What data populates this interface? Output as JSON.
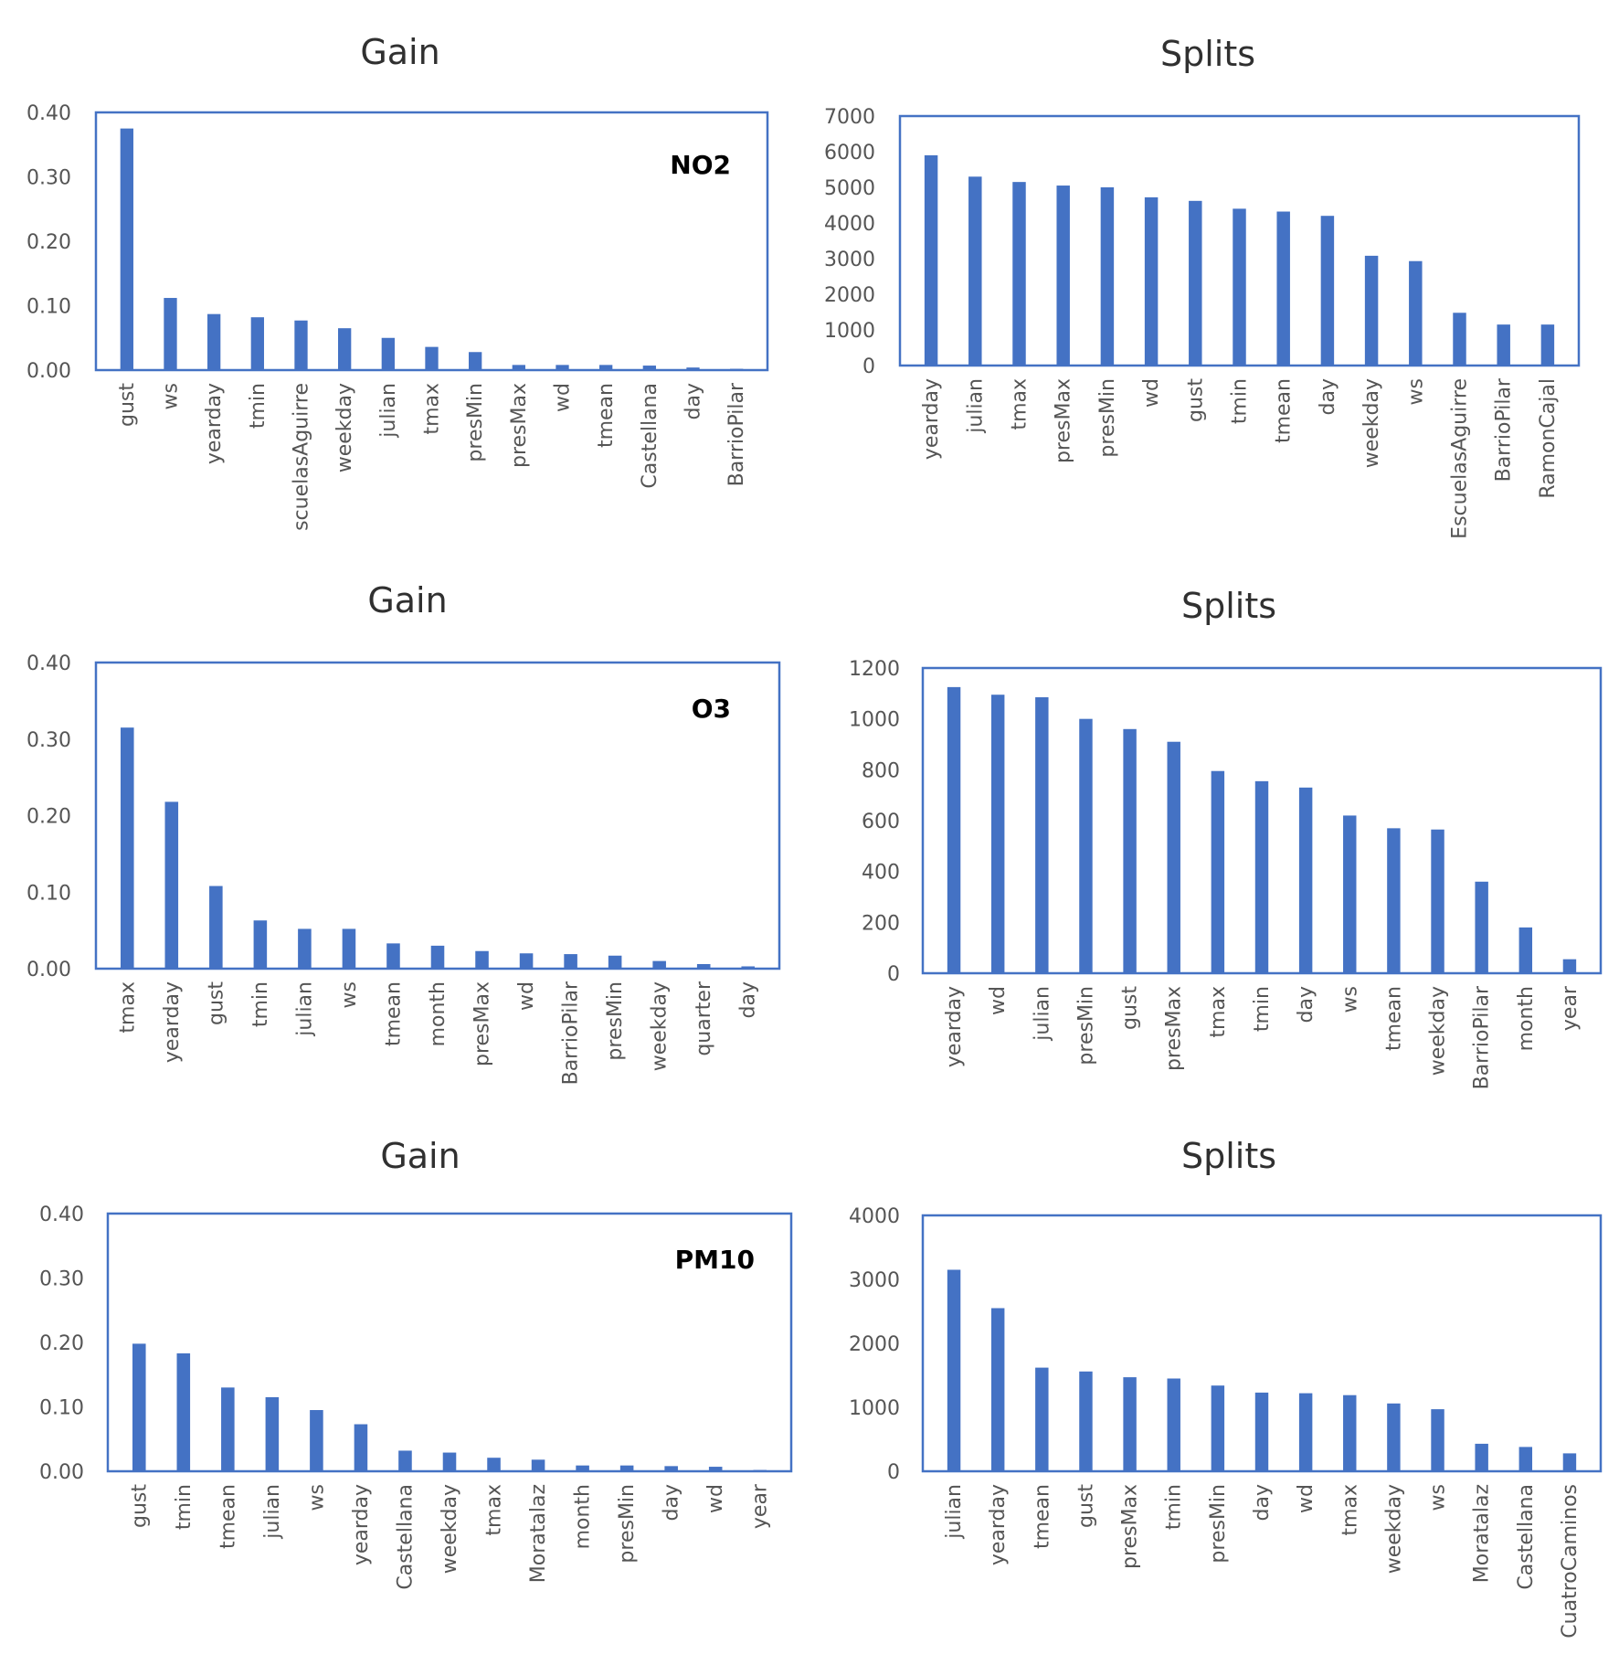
{
  "colors": {
    "bar": "#4472c4",
    "frame": "#4472c4"
  },
  "chart_data": [
    {
      "type": "bar",
      "title": "Gain",
      "pollutant": "NO2",
      "ylim": [
        0,
        0.4
      ],
      "yticks": [
        "0.00",
        "0.10",
        "0.20",
        "0.30",
        "0.40"
      ],
      "categories": [
        "gust",
        "ws",
        "yearday",
        "tmin",
        "scuelasAguirre",
        "weekday",
        "julian",
        "tmax",
        "presMin",
        "presMax",
        "wd",
        "tmean",
        "Castellana",
        "day",
        "BarrioPilar"
      ],
      "values": [
        0.375,
        0.112,
        0.087,
        0.082,
        0.077,
        0.065,
        0.05,
        0.036,
        0.028,
        0.008,
        0.008,
        0.008,
        0.007,
        0.004,
        0.002
      ]
    },
    {
      "type": "bar",
      "title": "Splits",
      "ylim": [
        0,
        7000
      ],
      "yticks": [
        "0",
        "1000",
        "2000",
        "3000",
        "4000",
        "5000",
        "6000",
        "7000"
      ],
      "categories": [
        "yearday",
        "julian",
        "tmax",
        "presMax",
        "presMin",
        "wd",
        "gust",
        "tmin",
        "tmean",
        "day",
        "weekday",
        "ws",
        "EscuelasAguirre",
        "BarrioPilar",
        "RamonCajal"
      ],
      "values": [
        5900,
        5300,
        5150,
        5050,
        5000,
        4720,
        4620,
        4400,
        4320,
        4200,
        3080,
        2930,
        1480,
        1150,
        1150
      ]
    },
    {
      "type": "bar",
      "title": "Gain",
      "pollutant": "O3",
      "ylim": [
        0,
        0.4
      ],
      "yticks": [
        "0.00",
        "0.10",
        "0.20",
        "0.30",
        "0.40"
      ],
      "categories": [
        "tmax",
        "yearday",
        "gust",
        "tmin",
        "julian",
        "ws",
        "tmean",
        "month",
        "presMax",
        "wd",
        "BarrioPilar",
        "presMin",
        "weekday",
        "quarter",
        "day"
      ],
      "values": [
        0.315,
        0.218,
        0.108,
        0.063,
        0.052,
        0.052,
        0.033,
        0.03,
        0.023,
        0.02,
        0.019,
        0.017,
        0.01,
        0.006,
        0.003
      ]
    },
    {
      "type": "bar",
      "title": "Splits",
      "ylim": [
        0,
        1200
      ],
      "yticks": [
        "0",
        "200",
        "400",
        "600",
        "800",
        "1000",
        "1200"
      ],
      "categories": [
        "yearday",
        "wd",
        "julian",
        "presMin",
        "gust",
        "presMax",
        "tmax",
        "tmin",
        "day",
        "ws",
        "tmean",
        "weekday",
        "BarrioPilar",
        "month",
        "year"
      ],
      "values": [
        1125,
        1095,
        1085,
        1000,
        960,
        910,
        795,
        755,
        730,
        620,
        570,
        565,
        360,
        180,
        55
      ]
    },
    {
      "type": "bar",
      "title": "Gain",
      "pollutant": "PM10",
      "ylim": [
        0,
        0.4
      ],
      "yticks": [
        "0.00",
        "0.10",
        "0.20",
        "0.30",
        "0.40"
      ],
      "categories": [
        "gust",
        "tmin",
        "tmean",
        "julian",
        "ws",
        "yearday",
        "Castellana",
        "weekday",
        "tmax",
        "Moratalaz",
        "month",
        "presMin",
        "day",
        "wd",
        "year"
      ],
      "values": [
        0.198,
        0.183,
        0.13,
        0.115,
        0.095,
        0.073,
        0.032,
        0.029,
        0.021,
        0.018,
        0.009,
        0.009,
        0.008,
        0.007,
        0.002
      ]
    },
    {
      "type": "bar",
      "title": "Splits",
      "ylim": [
        0,
        4000
      ],
      "yticks": [
        "0",
        "1000",
        "2000",
        "3000",
        "4000"
      ],
      "categories": [
        "julian",
        "yearday",
        "tmean",
        "gust",
        "presMax",
        "tmin",
        "presMin",
        "day",
        "wd",
        "tmax",
        "weekday",
        "ws",
        "Moratalaz",
        "Castellana",
        "CuatroCaminos"
      ],
      "values": [
        3150,
        2550,
        1620,
        1560,
        1470,
        1450,
        1340,
        1230,
        1220,
        1190,
        1060,
        970,
        430,
        380,
        280
      ]
    }
  ]
}
